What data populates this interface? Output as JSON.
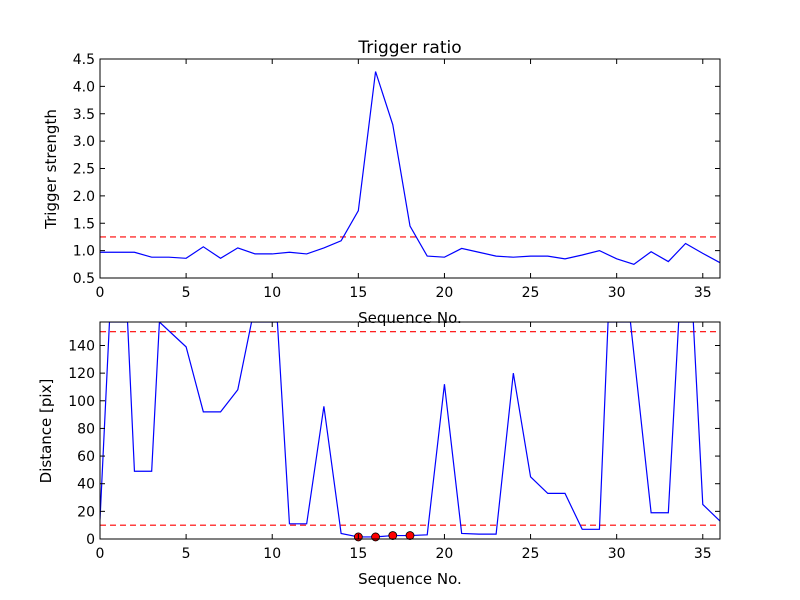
{
  "chart_data": [
    {
      "type": "line",
      "title": "Trigger ratio",
      "xlabel": "Sequence No.",
      "ylabel": "Trigger strength",
      "xlim": [
        0,
        36
      ],
      "ylim": [
        0.5,
        4.5
      ],
      "xticks": [
        0,
        5,
        10,
        15,
        20,
        25,
        30,
        35
      ],
      "yticks": [
        0.5,
        1.0,
        1.5,
        2.0,
        2.5,
        3.0,
        3.5,
        4.0,
        4.5
      ],
      "ytick_labels": [
        "0.5",
        "1.0",
        "1.5",
        "2.0",
        "2.5",
        "3.0",
        "3.5",
        "4.0",
        "4.5"
      ],
      "grid": false,
      "series": [
        {
          "color": "#0000ff",
          "x": [
            0,
            1,
            2,
            3,
            4,
            5,
            6,
            7,
            8,
            9,
            10,
            11,
            12,
            13,
            14,
            15,
            16,
            17,
            18,
            19,
            20,
            21,
            22,
            23,
            24,
            25,
            26,
            27,
            28,
            29,
            30,
            31,
            32,
            33,
            34,
            35,
            36
          ],
          "y": [
            0.97,
            0.97,
            0.97,
            0.88,
            0.88,
            0.86,
            1.07,
            0.86,
            1.05,
            0.94,
            0.94,
            0.97,
            0.94,
            1.05,
            1.18,
            1.73,
            4.27,
            3.3,
            1.45,
            0.9,
            0.88,
            1.04,
            0.97,
            0.9,
            0.88,
            0.9,
            0.9,
            0.85,
            0.92,
            1.0,
            0.85,
            0.75,
            0.98,
            0.8,
            1.13,
            0.95,
            0.78
          ]
        }
      ],
      "threshold_lines": [
        {
          "y": 1.25,
          "color": "#ff0000",
          "style": "dashed"
        }
      ]
    },
    {
      "type": "line",
      "title": "",
      "xlabel": "Sequence No.",
      "ylabel": "Distance [pix]",
      "xlim": [
        0,
        36
      ],
      "ylim": [
        0,
        157
      ],
      "xticks": [
        0,
        5,
        10,
        15,
        20,
        25,
        30,
        35
      ],
      "yticks": [
        0,
        20,
        40,
        60,
        80,
        100,
        120,
        140
      ],
      "ytick_labels": [
        "0",
        "20",
        "40",
        "60",
        "80",
        "100",
        "120",
        "140"
      ],
      "grid": false,
      "series": [
        {
          "color": "#0000ff",
          "x": [
            0,
            0.55,
            1.6,
            2,
            3,
            3.45,
            5,
            6,
            7,
            8,
            8.8,
            10.3,
            11,
            12,
            13,
            14,
            15,
            16,
            17,
            18,
            19,
            20,
            21,
            22,
            23,
            24,
            25,
            26,
            27,
            28,
            29,
            29.5,
            30.8,
            32,
            33,
            33.6,
            34.45,
            35,
            36
          ],
          "y": [
            14,
            157,
            157,
            49,
            49,
            157,
            139,
            92,
            92,
            108,
            157,
            157,
            11,
            11,
            96,
            4,
            1.5,
            1.5,
            2.5,
            2.5,
            3,
            112,
            4,
            3.5,
            3.5,
            120,
            45,
            33,
            33,
            7,
            7,
            157,
            157,
            19,
            19,
            157,
            157,
            25,
            13
          ]
        },
        {
          "color": "#ff0000",
          "marker": "circle",
          "x": [
            15,
            16,
            17,
            18
          ],
          "y": [
            1.5,
            1.5,
            2.5,
            2.5
          ]
        }
      ],
      "threshold_lines": [
        {
          "y": 150,
          "color": "#ff0000",
          "style": "dashed"
        },
        {
          "y": 10,
          "color": "#ff0000",
          "style": "dashed"
        }
      ]
    }
  ]
}
